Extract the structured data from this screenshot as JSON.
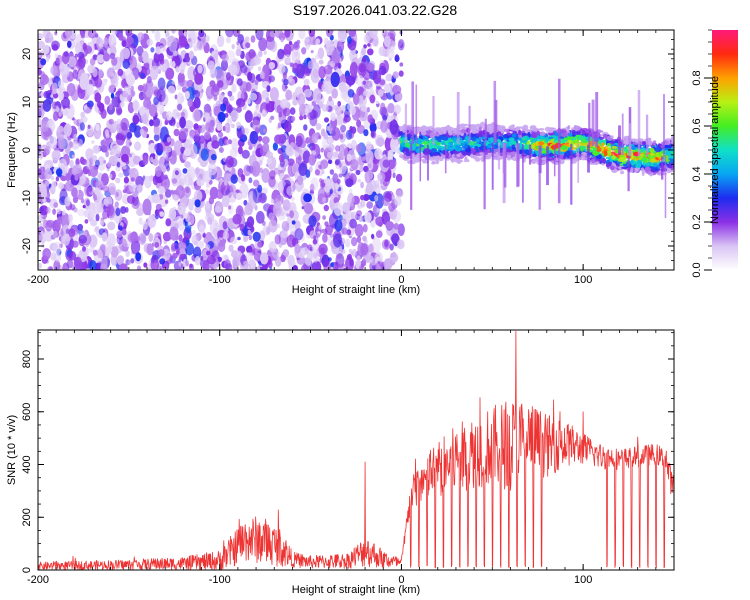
{
  "figure_title": "S197.2026.041.03.22.G28",
  "chart_data": [
    {
      "type": "heatmap",
      "title": "S197.2026.041.03.22.G28",
      "xlabel": "Height of straight line (km)",
      "ylabel": "Frequency (Hz)",
      "xlim": [
        -200,
        150
      ],
      "ylim": [
        -25,
        25
      ],
      "x_ticks": [
        -200,
        -100,
        0,
        100
      ],
      "y_ticks": [
        -20,
        -10,
        0,
        10,
        20
      ],
      "colorbar": {
        "label": "Normalized spectral amplitude",
        "range": [
          0,
          1
        ],
        "ticks": [
          0.0,
          0.2,
          0.4,
          0.6,
          0.8
        ],
        "tick_labels": [
          "0.0",
          "0.2",
          "0.4",
          "0.6",
          "0.8"
        ]
      },
      "description_regions": [
        {
          "x_range": [
            -200,
            0
          ],
          "pattern": "scattered low-amplitude noise across all frequencies",
          "amplitude": 0.25
        },
        {
          "x_range": [
            0,
            150
          ],
          "pattern": "narrow band near 0 Hz",
          "amplitude": 0.7
        }
      ],
      "ridge_x": [
        0,
        20,
        40,
        60,
        80,
        100,
        120,
        140,
        150
      ],
      "ridge_freq": [
        1.5,
        1.0,
        1.5,
        1.5,
        0.8,
        1.5,
        -1.0,
        -1.5,
        -1.0
      ],
      "ridge_amplitude": [
        0.55,
        0.55,
        0.5,
        0.45,
        0.85,
        0.75,
        0.9,
        0.85,
        0.6
      ]
    },
    {
      "type": "line",
      "xlabel": "Height of straight line (km)",
      "ylabel": "SNR (10 * v/v)",
      "xlim": [
        -200,
        150
      ],
      "ylim": [
        0,
        910
      ],
      "x_ticks": [
        -200,
        -100,
        0,
        100
      ],
      "y_ticks": [
        0,
        200,
        400,
        600,
        800
      ],
      "color": "#ee3333",
      "envelope": {
        "x": [
          -200,
          -150,
          -120,
          -100,
          -85,
          -75,
          -65,
          -60,
          -50,
          -30,
          -20,
          -15,
          -10,
          0,
          5,
          10,
          20,
          30,
          40,
          50,
          60,
          70,
          80,
          90,
          100,
          110,
          120,
          130,
          140,
          145,
          150
        ],
        "mean": [
          15,
          20,
          25,
          35,
          120,
          110,
          80,
          40,
          30,
          35,
          70,
          60,
          40,
          25,
          280,
          330,
          380,
          420,
          450,
          470,
          480,
          500,
          470,
          480,
          460,
          430,
          420,
          430,
          440,
          420,
          300
        ],
        "spread": [
          15,
          20,
          25,
          40,
          90,
          90,
          70,
          30,
          25,
          30,
          60,
          50,
          35,
          20,
          60,
          80,
          110,
          130,
          140,
          150,
          180,
          150,
          120,
          90,
          60,
          50,
          40,
          40,
          40,
          40,
          60
        ]
      },
      "dropouts_start_km": 5,
      "dropouts_end_km": 148,
      "dropout_gap_km": 80,
      "dropout_resume_km": 112,
      "dropout_spacing_km": 4.5,
      "peaks": [
        {
          "x": -20,
          "y": 410
        },
        {
          "x": 63,
          "y": 905
        },
        {
          "x": 100,
          "y": 600
        }
      ]
    }
  ]
}
